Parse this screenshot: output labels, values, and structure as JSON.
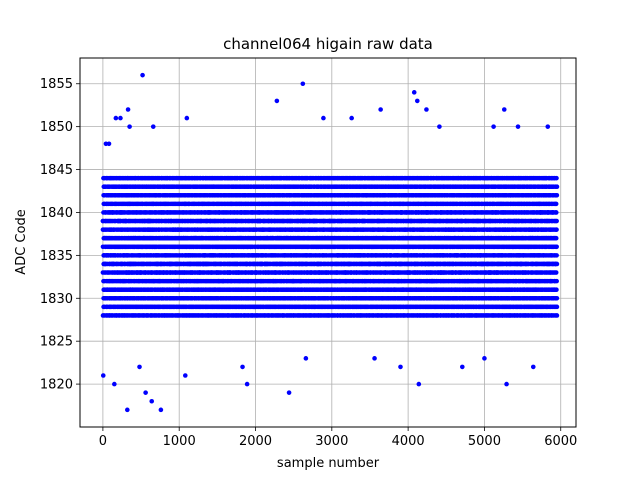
{
  "chart_data": {
    "type": "scatter",
    "title": "channel064 higain raw data",
    "xlabel": "sample number",
    "ylabel": "ADC Code",
    "xlim": [
      -300,
      6200
    ],
    "ylim": [
      1815,
      1858
    ],
    "xticks": [
      0,
      1000,
      2000,
      3000,
      4000,
      5000,
      6000
    ],
    "yticks": [
      1820,
      1825,
      1830,
      1835,
      1840,
      1845,
      1850,
      1855
    ],
    "grid": true,
    "marker_color": "#0000ff",
    "sample_range": [
      0,
      5950
    ],
    "core_range": [
      1826,
      1846
    ],
    "series": [
      {
        "values_note": "",
        "outliers": [
          [
            5,
            1821
          ],
          [
            40,
            1848
          ],
          [
            80,
            1848
          ],
          [
            150,
            1820
          ],
          [
            170,
            1851
          ],
          [
            230,
            1851
          ],
          [
            320,
            1817
          ],
          [
            330,
            1852
          ],
          [
            350,
            1850
          ],
          [
            480,
            1822
          ],
          [
            520,
            1856
          ],
          [
            560,
            1819
          ],
          [
            640,
            1818
          ],
          [
            660,
            1850
          ],
          [
            760,
            1817
          ],
          [
            1080,
            1821
          ],
          [
            1100,
            1851
          ],
          [
            1830,
            1822
          ],
          [
            1890,
            1820
          ],
          [
            2280,
            1853
          ],
          [
            2440,
            1819
          ],
          [
            2620,
            1855
          ],
          [
            2660,
            1823
          ],
          [
            2890,
            1851
          ],
          [
            3260,
            1851
          ],
          [
            3560,
            1823
          ],
          [
            3640,
            1852
          ],
          [
            3900,
            1822
          ],
          [
            4080,
            1854
          ],
          [
            4120,
            1853
          ],
          [
            4140,
            1820
          ],
          [
            4240,
            1852
          ],
          [
            4410,
            1850
          ],
          [
            4710,
            1822
          ],
          [
            5000,
            1823
          ],
          [
            5120,
            1850
          ],
          [
            5260,
            1852
          ],
          [
            5290,
            1820
          ],
          [
            5440,
            1850
          ],
          [
            5640,
            1822
          ],
          [
            5830,
            1850
          ]
        ]
      }
    ]
  }
}
